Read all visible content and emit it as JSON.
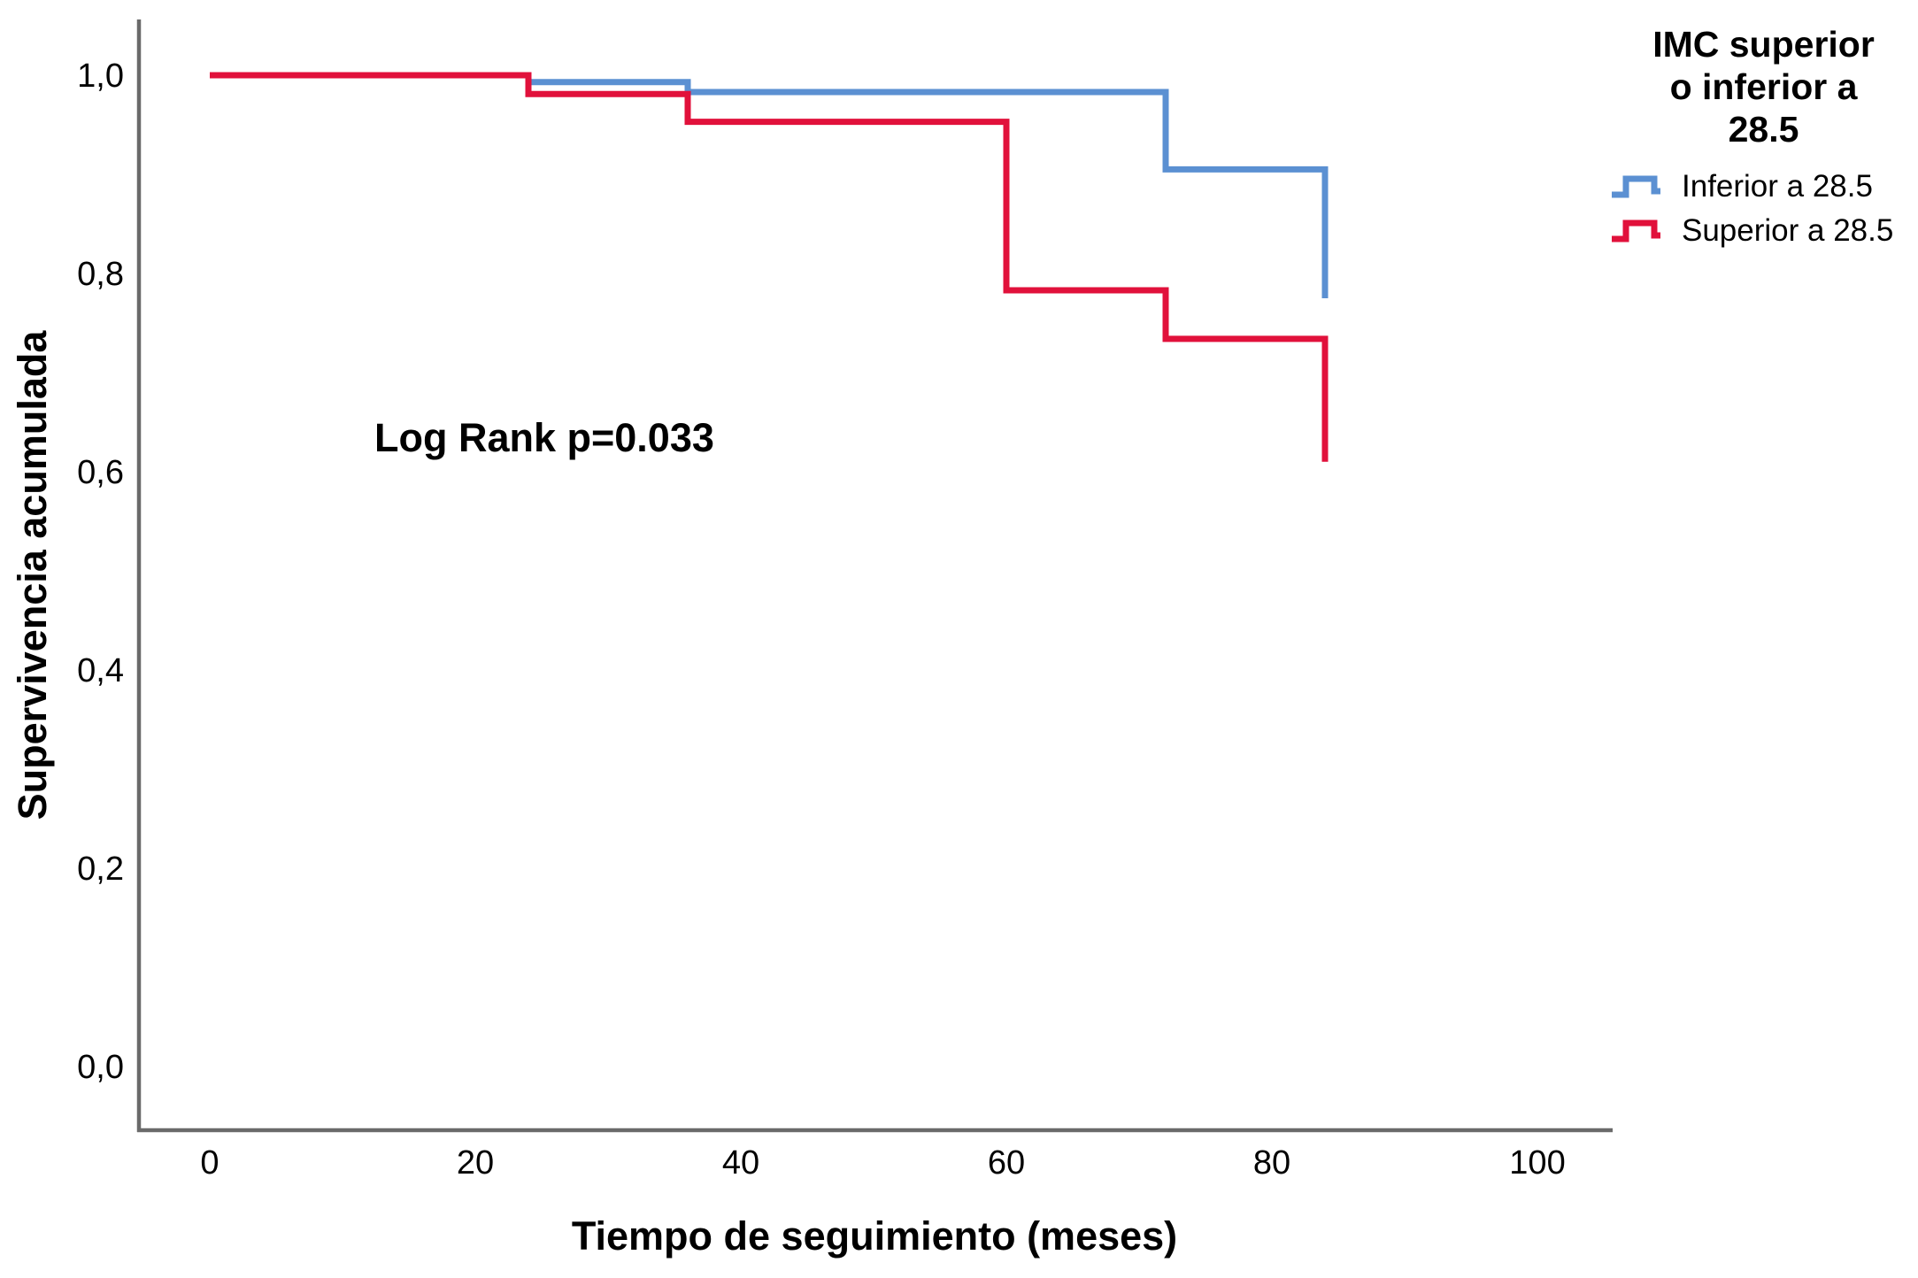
{
  "chart_data": {
    "type": "line",
    "subtype": "kaplan-meier-step",
    "title": "",
    "xlabel": "Tiempo de seguimiento (meses)",
    "ylabel": "Supervivencia acumulada",
    "annotation": "Log Rank p=0.033",
    "grid": false,
    "legend_position": "top-right",
    "xlim": [
      -5.5,
      105.5
    ],
    "ylim": [
      -0.06,
      1.06
    ],
    "xticks": {
      "values": [
        0,
        20,
        40,
        60,
        80,
        100
      ],
      "labels": [
        "0",
        "20",
        "40",
        "60",
        "80",
        "100"
      ]
    },
    "yticks": {
      "values": [
        0,
        0.2,
        0.4,
        0.6,
        0.8,
        1.0
      ],
      "labels": [
        "0,0",
        "0,2",
        "0,4",
        "0,6",
        "0,8",
        "1,0"
      ]
    },
    "series": [
      {
        "name": "Inferior a 28.5",
        "color": "#5B90D2",
        "points": [
          [
            0,
            1.0
          ],
          [
            24,
            1.0
          ],
          [
            24,
            0.993
          ],
          [
            36,
            0.993
          ],
          [
            36,
            0.983
          ],
          [
            72,
            0.983
          ],
          [
            72,
            0.905
          ],
          [
            84,
            0.905
          ],
          [
            84,
            0.775
          ]
        ]
      },
      {
        "name": "Superior a 28.5",
        "color": "#E1113B",
        "points": [
          [
            0,
            1.0
          ],
          [
            24,
            1.0
          ],
          [
            24,
            0.981
          ],
          [
            36,
            0.981
          ],
          [
            36,
            0.953
          ],
          [
            60,
            0.953
          ],
          [
            60,
            0.783
          ],
          [
            72,
            0.783
          ],
          [
            72,
            0.734
          ],
          [
            84,
            0.734
          ],
          [
            84,
            0.61
          ]
        ]
      }
    ]
  },
  "legend": {
    "title_lines": [
      "IMC superior",
      "o inferior a",
      "28.5"
    ],
    "entries": [
      {
        "label": "Inferior a 28.5",
        "color": "#5B90D2"
      },
      {
        "label": "Superior a 28.5",
        "color": "#E1113B"
      }
    ]
  },
  "style": {
    "axis_color": "#6A6A6A",
    "background": "#ffffff",
    "text_color": "#000000"
  }
}
